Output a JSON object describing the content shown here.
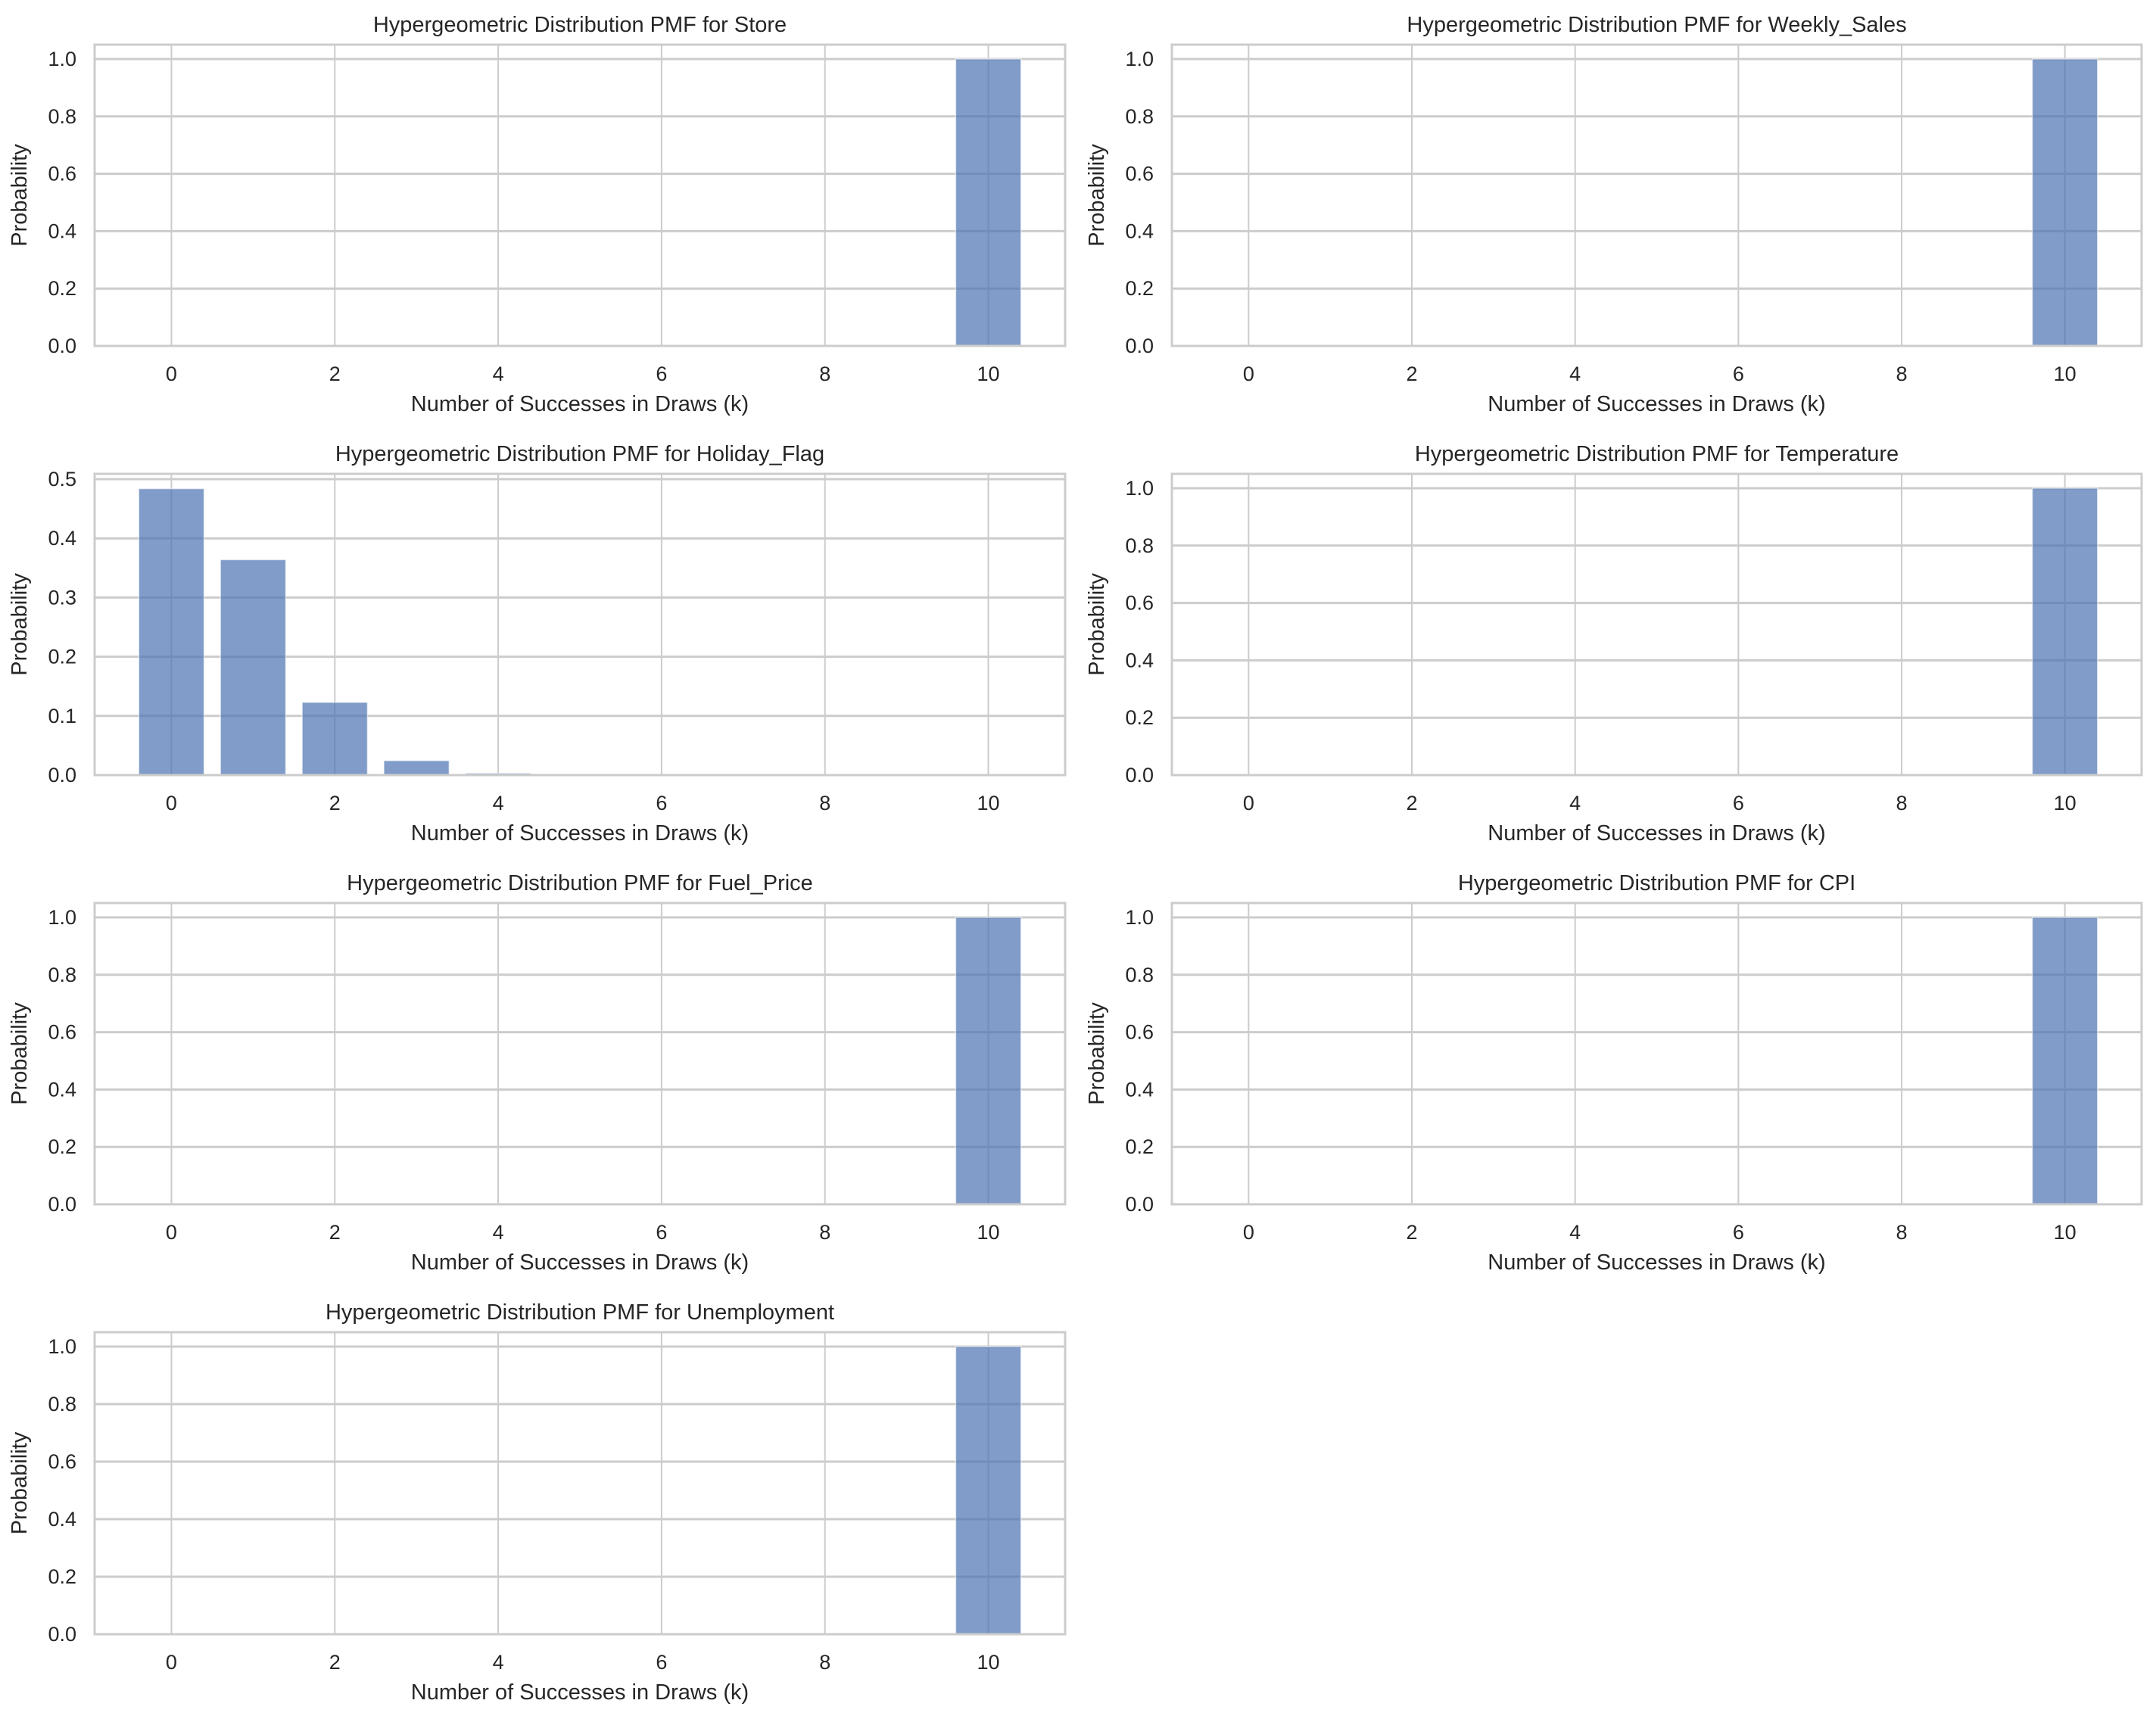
{
  "figure": {
    "background": "#ffffff",
    "bar_color": "#4C72B0",
    "bar_alpha": 0.7,
    "grid_color": "#cccccc"
  },
  "chart_data": [
    {
      "type": "bar",
      "title": "Hypergeometric Distribution PMF for Store",
      "xlabel": "Number of Successes in Draws (k)",
      "ylabel": "Probability",
      "x": [
        0,
        1,
        2,
        3,
        4,
        5,
        6,
        7,
        8,
        9,
        10
      ],
      "values": [
        0,
        0,
        0,
        0,
        0,
        0,
        0,
        0,
        0,
        0,
        1.0
      ],
      "xticks": [
        0,
        2,
        4,
        6,
        8,
        10
      ],
      "xtick_labels": [
        "0",
        "2",
        "4",
        "6",
        "8",
        "10"
      ],
      "yticks": [
        0.0,
        0.2,
        0.4,
        0.6,
        0.8,
        1.0
      ],
      "ytick_labels": [
        "0.0",
        "0.2",
        "0.4",
        "0.6",
        "0.8",
        "1.0"
      ],
      "xlim": [
        -0.94,
        10.94
      ],
      "ylim": [
        0,
        1.05
      ],
      "grid": true
    },
    {
      "type": "bar",
      "title": "Hypergeometric Distribution PMF for Weekly_Sales",
      "xlabel": "Number of Successes in Draws (k)",
      "ylabel": "Probability",
      "x": [
        0,
        1,
        2,
        3,
        4,
        5,
        6,
        7,
        8,
        9,
        10
      ],
      "values": [
        0,
        0,
        0,
        0,
        0,
        0,
        0,
        0,
        0,
        0,
        1.0
      ],
      "xticks": [
        0,
        2,
        4,
        6,
        8,
        10
      ],
      "xtick_labels": [
        "0",
        "2",
        "4",
        "6",
        "8",
        "10"
      ],
      "yticks": [
        0.0,
        0.2,
        0.4,
        0.6,
        0.8,
        1.0
      ],
      "ytick_labels": [
        "0.0",
        "0.2",
        "0.4",
        "0.6",
        "0.8",
        "1.0"
      ],
      "xlim": [
        -0.94,
        10.94
      ],
      "ylim": [
        0,
        1.05
      ],
      "grid": true
    },
    {
      "type": "bar",
      "title": "Hypergeometric Distribution PMF for Holiday_Flag",
      "xlabel": "Number of Successes in Draws (k)",
      "ylabel": "Probability",
      "x": [
        0,
        1,
        2,
        3,
        4,
        5,
        6,
        7,
        8,
        9,
        10
      ],
      "values": [
        0.484,
        0.364,
        0.123,
        0.0245,
        0.0032,
        0.0003,
        0,
        0,
        0,
        0,
        0
      ],
      "xticks": [
        0,
        2,
        4,
        6,
        8,
        10
      ],
      "xtick_labels": [
        "0",
        "2",
        "4",
        "6",
        "8",
        "10"
      ],
      "yticks": [
        0.0,
        0.1,
        0.2,
        0.3,
        0.4,
        0.5
      ],
      "ytick_labels": [
        "0.0",
        "0.1",
        "0.2",
        "0.3",
        "0.4",
        "0.5"
      ],
      "xlim": [
        -0.94,
        10.94
      ],
      "ylim": [
        0,
        0.509
      ],
      "grid": true
    },
    {
      "type": "bar",
      "title": "Hypergeometric Distribution PMF for Temperature",
      "xlabel": "Number of Successes in Draws (k)",
      "ylabel": "Probability",
      "x": [
        0,
        1,
        2,
        3,
        4,
        5,
        6,
        7,
        8,
        9,
        10
      ],
      "values": [
        0,
        0,
        0,
        0,
        0,
        0,
        0,
        0,
        0,
        0,
        1.0
      ],
      "xticks": [
        0,
        2,
        4,
        6,
        8,
        10
      ],
      "xtick_labels": [
        "0",
        "2",
        "4",
        "6",
        "8",
        "10"
      ],
      "yticks": [
        0.0,
        0.2,
        0.4,
        0.6,
        0.8,
        1.0
      ],
      "ytick_labels": [
        "0.0",
        "0.2",
        "0.4",
        "0.6",
        "0.8",
        "1.0"
      ],
      "xlim": [
        -0.94,
        10.94
      ],
      "ylim": [
        0,
        1.05
      ],
      "grid": true
    },
    {
      "type": "bar",
      "title": "Hypergeometric Distribution PMF for Fuel_Price",
      "xlabel": "Number of Successes in Draws (k)",
      "ylabel": "Probability",
      "x": [
        0,
        1,
        2,
        3,
        4,
        5,
        6,
        7,
        8,
        9,
        10
      ],
      "values": [
        0,
        0,
        0,
        0,
        0,
        0,
        0,
        0,
        0,
        0,
        1.0
      ],
      "xticks": [
        0,
        2,
        4,
        6,
        8,
        10
      ],
      "xtick_labels": [
        "0",
        "2",
        "4",
        "6",
        "8",
        "10"
      ],
      "yticks": [
        0.0,
        0.2,
        0.4,
        0.6,
        0.8,
        1.0
      ],
      "ytick_labels": [
        "0.0",
        "0.2",
        "0.4",
        "0.6",
        "0.8",
        "1.0"
      ],
      "xlim": [
        -0.94,
        10.94
      ],
      "ylim": [
        0,
        1.05
      ],
      "grid": true
    },
    {
      "type": "bar",
      "title": "Hypergeometric Distribution PMF for CPI",
      "xlabel": "Number of Successes in Draws (k)",
      "ylabel": "Probability",
      "x": [
        0,
        1,
        2,
        3,
        4,
        5,
        6,
        7,
        8,
        9,
        10
      ],
      "values": [
        0,
        0,
        0,
        0,
        0,
        0,
        0,
        0,
        0,
        0,
        1.0
      ],
      "xticks": [
        0,
        2,
        4,
        6,
        8,
        10
      ],
      "xtick_labels": [
        "0",
        "2",
        "4",
        "6",
        "8",
        "10"
      ],
      "yticks": [
        0.0,
        0.2,
        0.4,
        0.6,
        0.8,
        1.0
      ],
      "ytick_labels": [
        "0.0",
        "0.2",
        "0.4",
        "0.6",
        "0.8",
        "1.0"
      ],
      "xlim": [
        -0.94,
        10.94
      ],
      "ylim": [
        0,
        1.05
      ],
      "grid": true
    },
    {
      "type": "bar",
      "title": "Hypergeometric Distribution PMF for Unemployment",
      "xlabel": "Number of Successes in Draws (k)",
      "ylabel": "Probability",
      "x": [
        0,
        1,
        2,
        3,
        4,
        5,
        6,
        7,
        8,
        9,
        10
      ],
      "values": [
        0,
        0,
        0,
        0,
        0,
        0,
        0,
        0,
        0,
        0,
        1.0
      ],
      "xticks": [
        0,
        2,
        4,
        6,
        8,
        10
      ],
      "xtick_labels": [
        "0",
        "2",
        "4",
        "6",
        "8",
        "10"
      ],
      "yticks": [
        0.0,
        0.2,
        0.4,
        0.6,
        0.8,
        1.0
      ],
      "ytick_labels": [
        "0.0",
        "0.2",
        "0.4",
        "0.6",
        "0.8",
        "1.0"
      ],
      "xlim": [
        -0.94,
        10.94
      ],
      "ylim": [
        0,
        1.05
      ],
      "grid": true
    }
  ]
}
